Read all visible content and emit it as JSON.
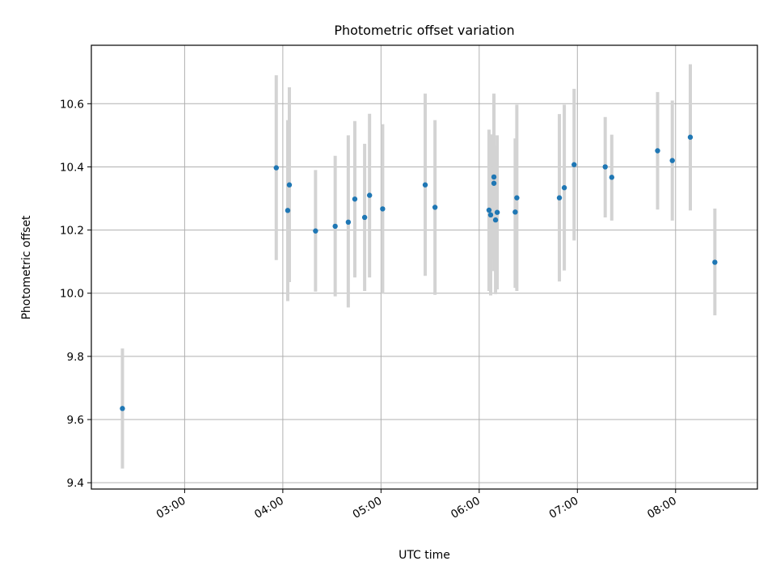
{
  "chart_data": {
    "type": "scatter",
    "title": "Photometric offset variation",
    "xlabel": "UTC time",
    "ylabel": "Photometric offset",
    "x_ticks": [
      "03:00",
      "04:00",
      "05:00",
      "06:00",
      "07:00",
      "08:00"
    ],
    "y_ticks": [
      "9.4",
      "9.6",
      "9.8",
      "10.0",
      "10.2",
      "10.4",
      "10.6"
    ],
    "xlim": [
      "02:03",
      "08:50"
    ],
    "ylim": [
      9.38,
      10.785
    ],
    "grid": true,
    "points": [
      {
        "x": "02:22",
        "y": 9.635,
        "err_low": 9.445,
        "err_high": 9.825
      },
      {
        "x": "03:56",
        "y": 10.397,
        "err_low": 10.105,
        "err_high": 10.69
      },
      {
        "x": "04:03",
        "y": 10.262,
        "err_low": 9.975,
        "err_high": 10.548
      },
      {
        "x": "04:04",
        "y": 10.343,
        "err_low": 10.035,
        "err_high": 10.652
      },
      {
        "x": "04:20",
        "y": 10.197,
        "err_low": 10.005,
        "err_high": 10.39
      },
      {
        "x": "04:32",
        "y": 10.212,
        "err_low": 9.99,
        "err_high": 10.435
      },
      {
        "x": "04:40",
        "y": 10.225,
        "err_low": 9.955,
        "err_high": 10.5
      },
      {
        "x": "04:44",
        "y": 10.298,
        "err_low": 10.05,
        "err_high": 10.545
      },
      {
        "x": "04:50",
        "y": 10.24,
        "err_low": 10.007,
        "err_high": 10.473
      },
      {
        "x": "04:53",
        "y": 10.31,
        "err_low": 10.05,
        "err_high": 10.568
      },
      {
        "x": "05:01",
        "y": 10.267,
        "err_low": 9.998,
        "err_high": 10.535
      },
      {
        "x": "05:27",
        "y": 10.343,
        "err_low": 10.055,
        "err_high": 10.632
      },
      {
        "x": "05:33",
        "y": 10.272,
        "err_low": 9.995,
        "err_high": 10.548
      },
      {
        "x": "06:06",
        "y": 10.263,
        "err_low": 10.007,
        "err_high": 10.518
      },
      {
        "x": "06:07",
        "y": 10.248,
        "err_low": 9.993,
        "err_high": 10.503
      },
      {
        "x": "06:09",
        "y": 10.368,
        "err_low": 10.105,
        "err_high": 10.632
      },
      {
        "x": "06:09",
        "y": 10.348,
        "err_low": 10.07,
        "err_high": 10.625
      },
      {
        "x": "06:10",
        "y": 10.232,
        "err_low": 9.997,
        "err_high": 10.468
      },
      {
        "x": "06:11",
        "y": 10.256,
        "err_low": 10.012,
        "err_high": 10.5
      },
      {
        "x": "06:22",
        "y": 10.257,
        "err_low": 10.017,
        "err_high": 10.49
      },
      {
        "x": "06:23",
        "y": 10.302,
        "err_low": 10.007,
        "err_high": 10.597
      },
      {
        "x": "06:49",
        "y": 10.302,
        "err_low": 10.037,
        "err_high": 10.567
      },
      {
        "x": "06:52",
        "y": 10.334,
        "err_low": 10.072,
        "err_high": 10.597
      },
      {
        "x": "06:58",
        "y": 10.407,
        "err_low": 10.167,
        "err_high": 10.647
      },
      {
        "x": "07:17",
        "y": 10.4,
        "err_low": 10.24,
        "err_high": 10.558
      },
      {
        "x": "07:21",
        "y": 10.367,
        "err_low": 10.23,
        "err_high": 10.502
      },
      {
        "x": "07:49",
        "y": 10.451,
        "err_low": 10.265,
        "err_high": 10.637
      },
      {
        "x": "07:58",
        "y": 10.42,
        "err_low": 10.23,
        "err_high": 10.61
      },
      {
        "x": "08:09",
        "y": 10.494,
        "err_low": 10.262,
        "err_high": 10.725
      },
      {
        "x": "08:24",
        "y": 10.098,
        "err_low": 9.93,
        "err_high": 10.268
      }
    ]
  }
}
